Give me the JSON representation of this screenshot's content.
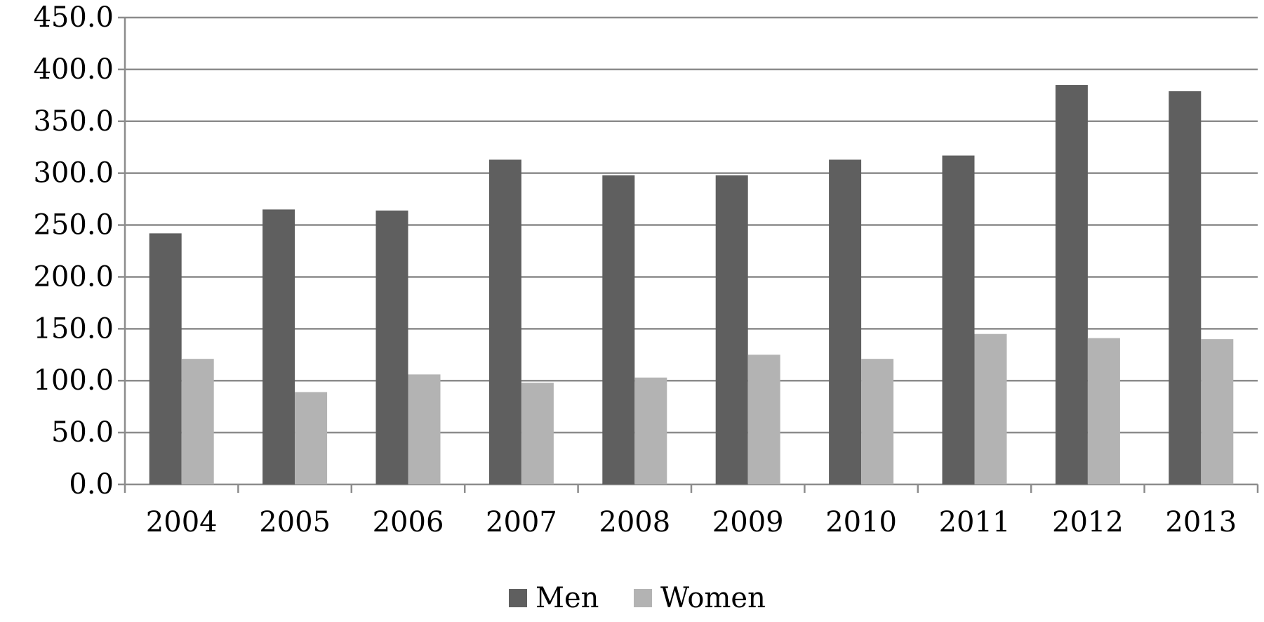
{
  "chart_data": {
    "type": "bar",
    "title": "",
    "xlabel": "",
    "ylabel": "",
    "categories": [
      "2004",
      "2005",
      "2006",
      "2007",
      "2008",
      "2009",
      "2010",
      "2011",
      "2012",
      "2013"
    ],
    "series": [
      {
        "name": "Men",
        "color": "#5f5f5f",
        "values": [
          242.0,
          265.0,
          264.0,
          313.0,
          298.0,
          298.0,
          313.0,
          317.0,
          385.0,
          379.0
        ]
      },
      {
        "name": "Women",
        "color": "#b3b3b3",
        "values": [
          121.0,
          89.0,
          106.0,
          98.0,
          103.0,
          125.0,
          121.0,
          145.0,
          141.0,
          140.0
        ]
      }
    ],
    "ylim": [
      0,
      450
    ],
    "yticks": [
      "0.0",
      "50.0",
      "100.0",
      "150.0",
      "200.0",
      "250.0",
      "300.0",
      "350.0",
      "400.0",
      "450.0"
    ],
    "grid": true,
    "gridline_color": "#8c8c8c",
    "legend": "bottom"
  }
}
